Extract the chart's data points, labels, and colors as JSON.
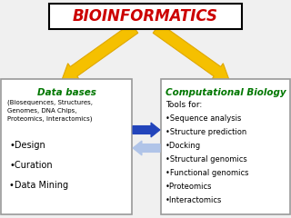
{
  "title": "BIOINFORMATICS",
  "title_color": "#cc0000",
  "title_box_edge": "#000000",
  "bg_color": "#f0f0f0",
  "left_box_title": "Data bases",
  "left_box_title_color": "#007700",
  "left_box_subtitle": "(Biosequences, Structures,\nGenomes, DNA Chips,\nProteomics, Interactomics)",
  "left_box_items": [
    "•Design",
    "•Curation",
    "•Data Mining"
  ],
  "right_box_title": "Computational Biology",
  "right_box_title_color": "#007700",
  "right_box_items": [
    "Tools for:",
    "•Sequence analysis",
    "•Structure prediction",
    "•Docking",
    "•Structural genomics",
    "•Functional genomics",
    "•Proteomics",
    "•Interactomics"
  ],
  "arrow_gold_color": "#f5c000",
  "arrow_gold_edge": "#e0a800",
  "arrow_blue_color": "#2244bb",
  "arrow_light_blue_color": "#b0c4e8"
}
